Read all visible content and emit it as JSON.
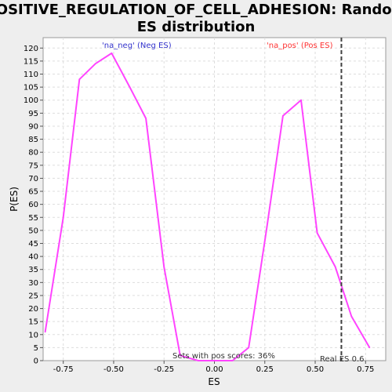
{
  "chart_data": {
    "type": "line",
    "title_line1": "POSITIVE_REGULATION_OF_CELL_ADHESION: Random",
    "title_line2": "ES distribution",
    "xlabel": "ES",
    "ylabel": "P(ES)",
    "xlim": [
      -0.85,
      0.85
    ],
    "ylim": [
      0,
      124
    ],
    "x_ticks": [
      -0.75,
      -0.5,
      -0.25,
      0.0,
      0.25,
      0.5,
      0.75
    ],
    "x_tick_labels": [
      "-0.75",
      "-0.50",
      "-0.25",
      "0.00",
      "0.25",
      "0.50",
      "0.75"
    ],
    "y_ticks": [
      0,
      5,
      10,
      15,
      20,
      25,
      30,
      35,
      40,
      45,
      50,
      55,
      60,
      65,
      70,
      75,
      80,
      85,
      90,
      95,
      100,
      105,
      110,
      115,
      120
    ],
    "y_tick_labels": [
      "0",
      "5",
      "10",
      "15",
      "20",
      "25",
      "30",
      "35",
      "40",
      "45",
      "50",
      "55",
      "60",
      "65",
      "70",
      "75",
      "80",
      "85",
      "90",
      "95",
      "100",
      "105",
      "110",
      "115",
      "120"
    ],
    "grid": true,
    "series": [
      {
        "color": "#ff44ff",
        "x": [
          -0.84,
          -0.75,
          -0.67,
          -0.59,
          -0.51,
          -0.42,
          -0.34,
          -0.25,
          -0.17,
          -0.08,
          0.01,
          0.09,
          0.17,
          0.26,
          0.34,
          0.43,
          0.51,
          0.6,
          0.68,
          0.77
        ],
        "y": [
          11,
          55,
          108,
          114,
          118,
          105,
          93,
          36,
          2,
          0,
          0,
          0,
          5,
          51,
          94,
          100,
          49,
          36,
          17,
          5
        ]
      }
    ],
    "real_es": 0.63,
    "real_es_color": "#404040",
    "annotations": {
      "neg_label": "'na_neg' (Neg ES)",
      "neg_color": "#3333cc",
      "pos_label": "'na_pos' (Pos ES)",
      "pos_color": "#ff3333",
      "sets_label": "Sets with pos scores: 36%",
      "real_es_label": "Real ES 0.6"
    }
  }
}
